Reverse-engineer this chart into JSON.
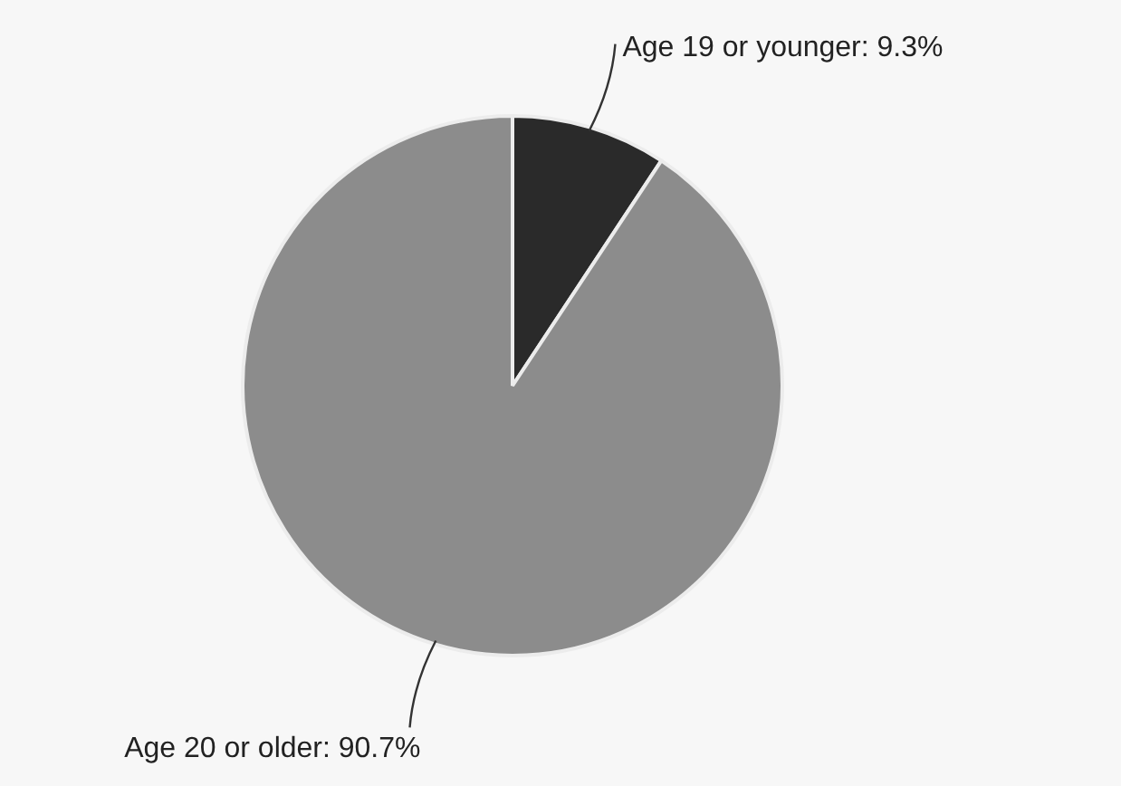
{
  "chart_data": {
    "type": "pie",
    "categories": [
      "Age 19 or younger",
      "Age 20 or older"
    ],
    "values": [
      9.3,
      90.7
    ],
    "value_labels": [
      "9.3%",
      "90.7%"
    ],
    "colors": [
      "#2a2a2a",
      "#8c8c8c"
    ],
    "legend": false
  }
}
